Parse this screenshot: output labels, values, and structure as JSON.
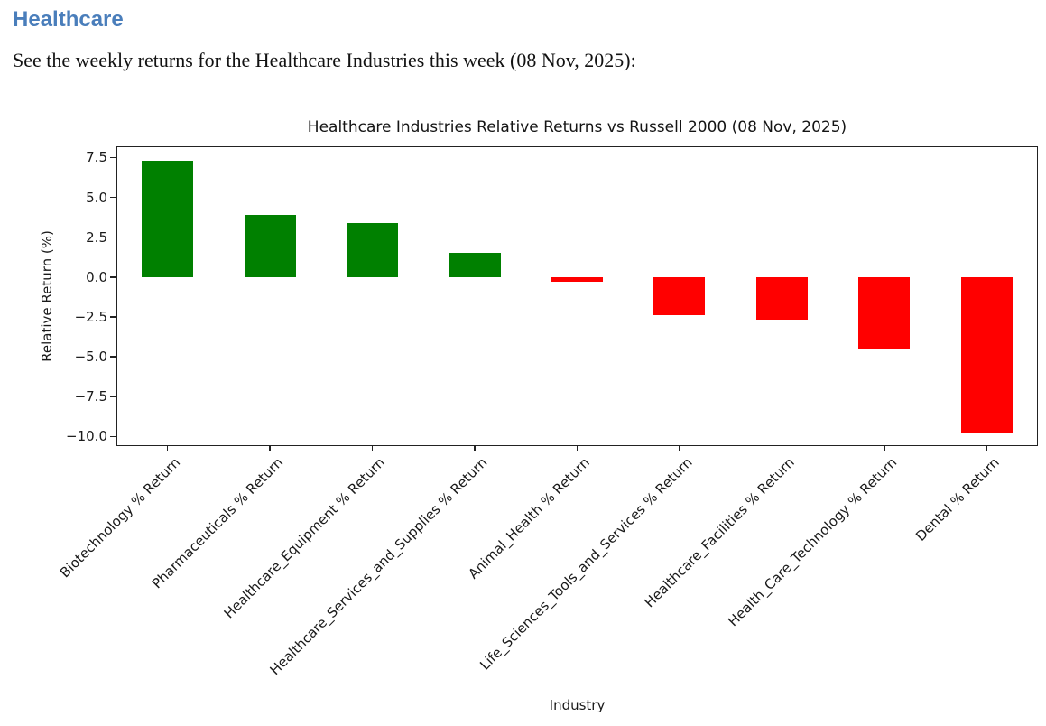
{
  "page": {
    "heading": "Healthcare",
    "subtitle": "See the weekly returns for the Healthcare Industries this week (08 Nov, 2025):"
  },
  "colors": {
    "heading_blue": "#4a7ebb",
    "axis_dark": "#222222"
  },
  "chart_data": {
    "type": "bar",
    "title": "Healthcare Industries Relative Returns vs Russell 2000 (08 Nov, 2025)",
    "xlabel": "Industry",
    "ylabel": "Relative Return (%)",
    "categories": [
      "Biotechnology % Return",
      "Pharmaceuticals % Return",
      "Healthcare_Equipment % Return",
      "Healthcare_Services_and_Supplies % Return",
      "Animal_Health % Return",
      "Life_Sciences_Tools_and_Services % Return",
      "Healthcare_Facilities % Return",
      "Health_Care_Technology % Return",
      "Dental % Return"
    ],
    "values": [
      7.3,
      3.9,
      3.4,
      1.5,
      -0.3,
      -2.4,
      -2.7,
      -4.5,
      -9.8
    ],
    "bar_color_positive": "#008000",
    "bar_color_negative": "#ff0000",
    "yticks": [
      7.5,
      5.0,
      2.5,
      0.0,
      -2.5,
      -5.0,
      -7.5,
      -10.0
    ],
    "ylim": [
      -10.6,
      8.2
    ],
    "x_tick_rotation_deg": 45,
    "grid": false,
    "legend": null
  }
}
